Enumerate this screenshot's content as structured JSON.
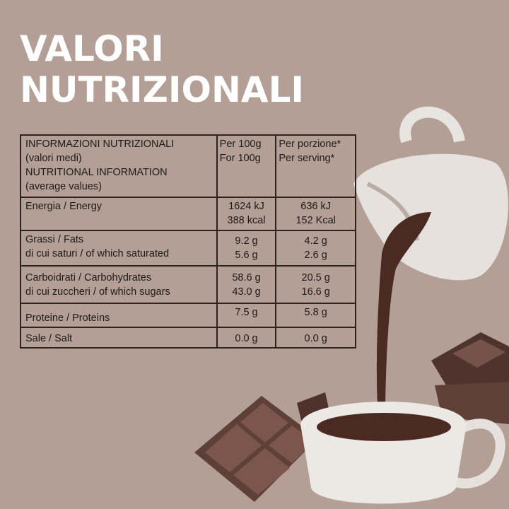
{
  "title": {
    "line1": "VALORI",
    "line2": "NUTRIZIONALI"
  },
  "table": {
    "header": {
      "label": [
        "INFORMAZIONI NUTRIZIONALI",
        "(valori medi)",
        "NUTRITIONAL INFORMATION",
        "(average values)"
      ],
      "per100": [
        "Per 100g",
        "For 100g"
      ],
      "serving": [
        "Per porzione*",
        "Per serving*"
      ]
    },
    "rows": [
      {
        "label": [
          "Energia / Energy"
        ],
        "per100": [
          "1624 kJ",
          "388 kcal"
        ],
        "serving": [
          "636 kJ",
          "152 Kcal"
        ]
      },
      {
        "label": [
          "Grassi / Fats",
          "di cui saturi / of which saturated"
        ],
        "per100": [
          "9.2 g",
          "5.6 g"
        ],
        "serving": [
          "4.2 g",
          "2.6 g"
        ]
      },
      {
        "label": [
          "Carboidrati / Carbohydrates",
          "di cui zuccheri / of which sugars"
        ],
        "per100": [
          "58.6 g",
          "43.0 g"
        ],
        "serving": [
          "20.5 g",
          "16.6 g"
        ]
      },
      {
        "label": [
          "Proteine / Proteins"
        ],
        "per100": [
          "7.5 g"
        ],
        "serving": [
          "5.8 g"
        ]
      },
      {
        "label": [
          "Sale / Salt"
        ],
        "per100": [
          "0.0 g"
        ],
        "serving": [
          "0.0 g"
        ]
      }
    ]
  },
  "colors": {
    "background": "#b39f95",
    "title": "#ffffff",
    "chocolate": "#5a3a30"
  }
}
